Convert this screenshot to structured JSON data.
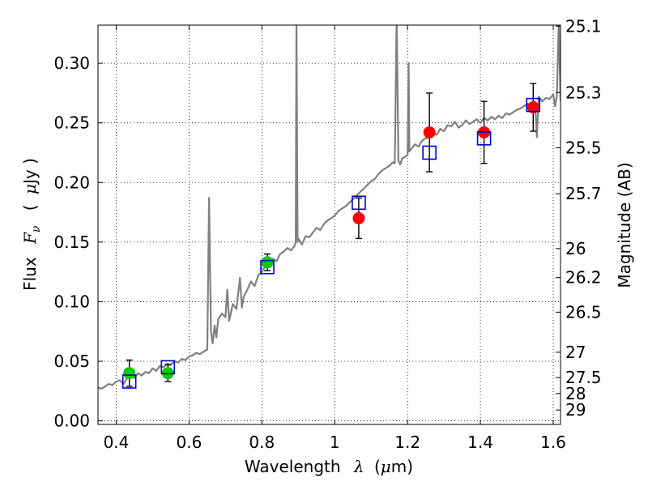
{
  "chart_data": {
    "type": "scatter",
    "title": "",
    "xlabel": "Wavelength  λ (μm)",
    "xlabel_parts": {
      "prefix": "Wavelength",
      "symbol": "λ",
      "unit_open": "(",
      "unit_mu": "μ",
      "unit_rest": "m)"
    },
    "ylabel": "Flux  Fν  ( μJy )",
    "ylabel_parts": {
      "prefix": "Flux",
      "symbol": "F",
      "symbol_sub": "ν",
      "unit_open": "(",
      "unit_mu": "μ",
      "unit_rest": "Jy )"
    },
    "y2label": "Magnitude (AB)",
    "xlim": [
      0.35,
      1.62
    ],
    "ylim": [
      -0.003,
      0.332
    ],
    "grid": true,
    "grid_style": "dotted",
    "xticks": [
      0.4,
      0.6,
      0.8,
      1.0,
      1.2,
      1.4,
      1.6
    ],
    "xtick_labels": [
      "0.4",
      "0.6",
      "0.8",
      "1",
      "1.2",
      "1.4",
      "1.6"
    ],
    "yticks": [
      0.0,
      0.05,
      0.1,
      0.15,
      0.2,
      0.25,
      0.3
    ],
    "ytick_labels": [
      "0.00",
      "0.05",
      "0.10",
      "0.15",
      "0.20",
      "0.25",
      "0.30"
    ],
    "y2ticks": [
      25.1,
      25.3,
      25.5,
      25.7,
      26,
      26.2,
      26.5,
      27,
      27.5,
      28,
      29
    ],
    "y2tick_labels": [
      "25.1",
      "25.3",
      "25.5",
      "25.7",
      "26",
      "26.2",
      "26.5",
      "27",
      "27.5",
      "28",
      "29"
    ],
    "y2_magnitude_zero_point": 23.9,
    "series": [
      {
        "kind": "line",
        "color": "#808080",
        "x": [
          0.35,
          0.36,
          0.37,
          0.38,
          0.39,
          0.4,
          0.41,
          0.42,
          0.43,
          0.44,
          0.45,
          0.46,
          0.47,
          0.48,
          0.49,
          0.5,
          0.51,
          0.52,
          0.53,
          0.54,
          0.55,
          0.56,
          0.57,
          0.58,
          0.59,
          0.6,
          0.61,
          0.62,
          0.63,
          0.64,
          0.65,
          0.655,
          0.66,
          0.665,
          0.67,
          0.675,
          0.68,
          0.69,
          0.7,
          0.705,
          0.71,
          0.72,
          0.73,
          0.74,
          0.745,
          0.75,
          0.76,
          0.77,
          0.78,
          0.79,
          0.8,
          0.81,
          0.82,
          0.83,
          0.84,
          0.85,
          0.86,
          0.87,
          0.88,
          0.89,
          0.893,
          0.895,
          0.898,
          0.9,
          0.91,
          0.92,
          0.93,
          0.94,
          0.95,
          0.96,
          0.97,
          0.98,
          0.99,
          1.0,
          1.01,
          1.02,
          1.03,
          1.04,
          1.05,
          1.06,
          1.07,
          1.08,
          1.09,
          1.1,
          1.11,
          1.12,
          1.13,
          1.14,
          1.15,
          1.16,
          1.165,
          1.17,
          1.175,
          1.18,
          1.185,
          1.19,
          1.2,
          1.203,
          1.205,
          1.21,
          1.22,
          1.23,
          1.24,
          1.25,
          1.26,
          1.27,
          1.28,
          1.29,
          1.3,
          1.31,
          1.32,
          1.33,
          1.34,
          1.35,
          1.36,
          1.37,
          1.38,
          1.39,
          1.4,
          1.41,
          1.42,
          1.43,
          1.44,
          1.45,
          1.46,
          1.47,
          1.48,
          1.49,
          1.5,
          1.51,
          1.52,
          1.53,
          1.54,
          1.55,
          1.555,
          1.56,
          1.57,
          1.58,
          1.59,
          1.6,
          1.605,
          1.61,
          1.615,
          1.62
        ],
        "y": [
          0.028,
          0.027,
          0.029,
          0.031,
          0.03,
          0.033,
          0.034,
          0.031,
          0.036,
          0.038,
          0.036,
          0.04,
          0.038,
          0.041,
          0.04,
          0.044,
          0.042,
          0.046,
          0.045,
          0.048,
          0.047,
          0.05,
          0.049,
          0.052,
          0.051,
          0.054,
          0.055,
          0.057,
          0.056,
          0.058,
          0.06,
          0.187,
          0.075,
          0.065,
          0.08,
          0.07,
          0.085,
          0.09,
          0.087,
          0.11,
          0.084,
          0.098,
          0.094,
          0.12,
          0.095,
          0.104,
          0.11,
          0.117,
          0.113,
          0.122,
          0.125,
          0.13,
          0.131,
          0.136,
          0.134,
          0.14,
          0.142,
          0.145,
          0.143,
          0.147,
          0.15,
          0.34,
          0.15,
          0.153,
          0.148,
          0.155,
          0.154,
          0.158,
          0.162,
          0.16,
          0.165,
          0.168,
          0.17,
          0.172,
          0.176,
          0.178,
          0.18,
          0.183,
          0.186,
          0.189,
          0.192,
          0.195,
          0.198,
          0.201,
          0.203,
          0.207,
          0.21,
          0.212,
          0.214,
          0.217,
          0.216,
          0.34,
          0.218,
          0.215,
          0.22,
          0.221,
          0.223,
          0.3,
          0.226,
          0.228,
          0.232,
          0.23,
          0.235,
          0.237,
          0.238,
          0.242,
          0.24,
          0.245,
          0.243,
          0.248,
          0.247,
          0.251,
          0.246,
          0.248,
          0.252,
          0.249,
          0.251,
          0.253,
          0.25,
          0.254,
          0.252,
          0.255,
          0.253,
          0.256,
          0.254,
          0.258,
          0.257,
          0.259,
          0.261,
          0.262,
          0.264,
          0.266,
          0.265,
          0.268,
          0.238,
          0.272,
          0.268,
          0.271,
          0.27,
          0.274,
          0.264,
          0.272,
          0.335,
          0.268
        ]
      },
      {
        "kind": "errorbar",
        "color": "#00cc00",
        "marker": "circle",
        "x": [
          0.436,
          0.542,
          0.815
        ],
        "y": [
          0.04,
          0.04,
          0.133
        ],
        "yerr": [
          0.011,
          0.007,
          0.007
        ]
      },
      {
        "kind": "errorbar",
        "color": "#ff0000",
        "marker": "circle",
        "x": [
          1.066,
          1.26,
          1.41,
          1.545
        ],
        "y": [
          0.17,
          0.242,
          0.242,
          0.263
        ],
        "yerr": [
          0.017,
          0.033,
          0.026,
          0.02
        ]
      },
      {
        "kind": "scatter",
        "color": "#0000cc",
        "marker": "square-open",
        "x": [
          0.436,
          0.542,
          0.815,
          1.066,
          1.26,
          1.41,
          1.545
        ],
        "y": [
          0.033,
          0.045,
          0.129,
          0.183,
          0.225,
          0.237,
          0.265
        ]
      }
    ]
  }
}
